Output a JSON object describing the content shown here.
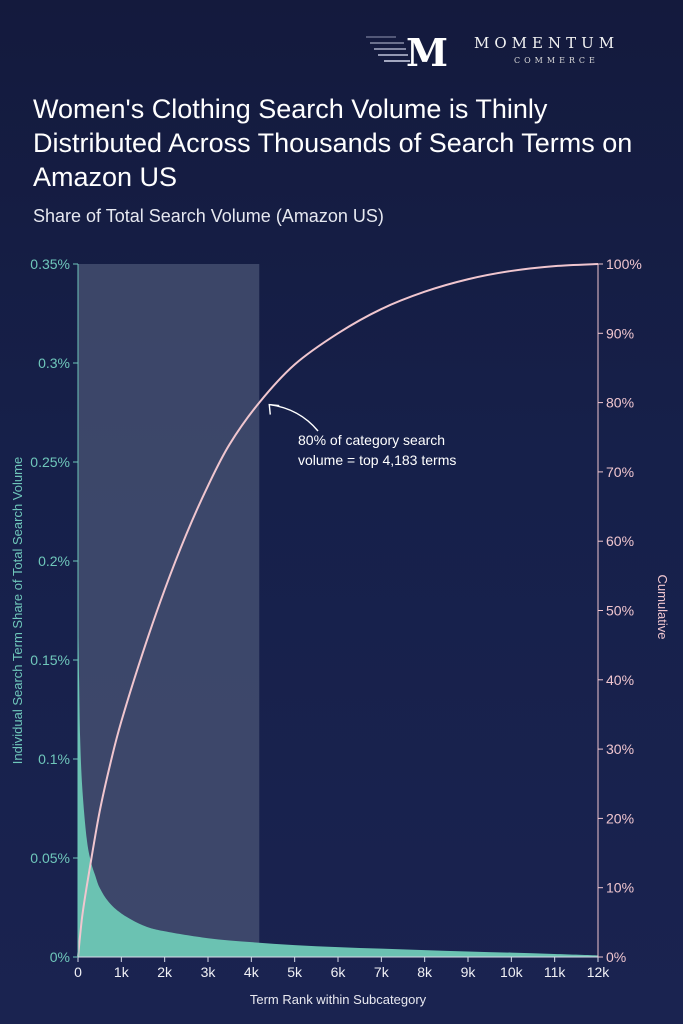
{
  "brand": {
    "letter": "M",
    "name": "MOMENTUM",
    "tagline": "COMMERCE"
  },
  "colors": {
    "left_axis": "#6fc7bb",
    "area_fill": "#6bc2b2",
    "cumulative_line": "#f0c6cf",
    "highlight": "#4a5474"
  },
  "chart_data": {
    "type": "area",
    "title": "Women's Clothing Search Volume is Thinly Distributed Across Thousands of Search Terms on Amazon US",
    "subtitle": "Share of Total Search Volume (Amazon US)",
    "xlabel": "Term Rank within Subcategory",
    "ylabel_left": "Individual Search Term Share of Total Search Volume",
    "ylabel_right": "Cumulative",
    "xlim": [
      0,
      12000
    ],
    "ylim_left": [
      0,
      0.35
    ],
    "ylim_right": [
      0,
      100
    ],
    "x_ticks": [
      "0",
      "1k",
      "2k",
      "3k",
      "4k",
      "5k",
      "6k",
      "7k",
      "8k",
      "9k",
      "10k",
      "11k",
      "12k"
    ],
    "y_left_ticks": [
      "0%",
      "0.05%",
      "0.1%",
      "0.15%",
      "0.2%",
      "0.25%",
      "0.3%",
      "0.35%"
    ],
    "y_right_ticks": [
      "0%",
      "10%",
      "20%",
      "30%",
      "40%",
      "50%",
      "60%",
      "70%",
      "80%",
      "90%",
      "100%"
    ],
    "highlight_range": [
      0,
      4183
    ],
    "annotation": {
      "line1": "80% of category search",
      "line2": "volume = top 4,183 terms",
      "x": 4183,
      "cumulative": 80
    },
    "series": [
      {
        "name": "Individual Search Term Share",
        "axis": "left",
        "x": [
          1,
          25,
          50,
          100,
          200,
          300,
          400,
          500,
          700,
          1000,
          1500,
          2000,
          3000,
          4000,
          5000,
          6000,
          7000,
          8000,
          9000,
          10000,
          11000,
          12000
        ],
        "values": [
          0.18,
          0.14,
          0.11,
          0.085,
          0.06,
          0.048,
          0.041,
          0.035,
          0.028,
          0.022,
          0.016,
          0.013,
          0.0095,
          0.0075,
          0.006,
          0.005,
          0.0042,
          0.0035,
          0.0028,
          0.0022,
          0.0015,
          0.0008
        ]
      },
      {
        "name": "Cumulative",
        "axis": "right",
        "x": [
          0,
          100,
          250,
          500,
          750,
          1000,
          1500,
          2000,
          2500,
          3000,
          3500,
          4183,
          5000,
          6000,
          7000,
          8000,
          9000,
          10000,
          11000,
          12000
        ],
        "values": [
          0,
          6,
          12,
          21,
          28,
          34,
          44,
          53,
          61,
          68,
          74,
          80,
          85.5,
          90,
          93.5,
          96,
          97.8,
          99,
          99.7,
          100
        ]
      }
    ]
  }
}
